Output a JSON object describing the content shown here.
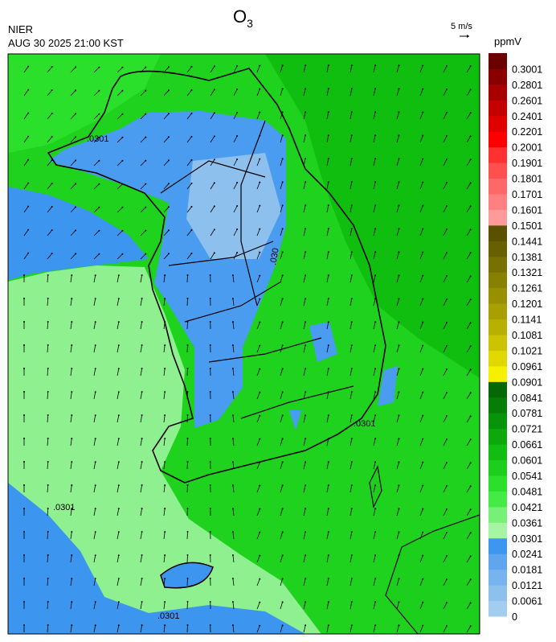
{
  "header": {
    "title": "O",
    "title_subscript": "3",
    "source": "NIER",
    "timestamp": "AUG 30 2025 21:00 KST",
    "wind_scale": "5 m/s",
    "unit": "ppmV"
  },
  "map": {
    "contour_labels": [
      ".0301",
      ".0301",
      ".0301",
      ".0301",
      ".030"
    ]
  },
  "colorbar": {
    "levels": [
      {
        "value": 0,
        "color": "#a3cdee"
      },
      {
        "value": 0.0061,
        "color": "#8ec0ee"
      },
      {
        "value": 0.0121,
        "color": "#77b3ee"
      },
      {
        "value": 0.0181,
        "color": "#5fa6ee"
      },
      {
        "value": 0.0241,
        "color": "#3d96f0"
      },
      {
        "value": 0.0301,
        "color": "#a5f5a5"
      },
      {
        "value": 0.0361,
        "color": "#78f078"
      },
      {
        "value": 0.0421,
        "color": "#44eb44"
      },
      {
        "value": 0.0481,
        "color": "#2ae02a"
      },
      {
        "value": 0.0541,
        "color": "#1ccf1c"
      },
      {
        "value": 0.0601,
        "color": "#12bd12"
      },
      {
        "value": 0.0661,
        "color": "#0ca80c"
      },
      {
        "value": 0.0721,
        "color": "#089408"
      },
      {
        "value": 0.0781,
        "color": "#067e06"
      },
      {
        "value": 0.0841,
        "color": "#046804"
      },
      {
        "value": 0.0901,
        "color": "#f5f000"
      },
      {
        "value": 0.0961,
        "color": "#e0d800"
      },
      {
        "value": 0.1021,
        "color": "#ccc400"
      },
      {
        "value": 0.1081,
        "color": "#b8b000"
      },
      {
        "value": 0.1141,
        "color": "#a8a000"
      },
      {
        "value": 0.1201,
        "color": "#989000"
      },
      {
        "value": 0.1261,
        "color": "#888000"
      },
      {
        "value": 0.1321,
        "color": "#787000"
      },
      {
        "value": 0.1381,
        "color": "#686000"
      },
      {
        "value": 0.1441,
        "color": "#5a5000"
      },
      {
        "value": 0.1501,
        "color": "#ff9a9a"
      },
      {
        "value": 0.1601,
        "color": "#ff8080"
      },
      {
        "value": 0.1701,
        "color": "#ff6868"
      },
      {
        "value": 0.1801,
        "color": "#ff5050"
      },
      {
        "value": 0.1901,
        "color": "#ff3030"
      },
      {
        "value": 0.2001,
        "color": "#ff0000"
      },
      {
        "value": 0.2201,
        "color": "#e00000"
      },
      {
        "value": 0.2401,
        "color": "#c40000"
      },
      {
        "value": 0.2601,
        "color": "#a80000"
      },
      {
        "value": 0.2801,
        "color": "#8a0000"
      },
      {
        "value": 0.3001,
        "color": "#6a0000"
      }
    ]
  }
}
